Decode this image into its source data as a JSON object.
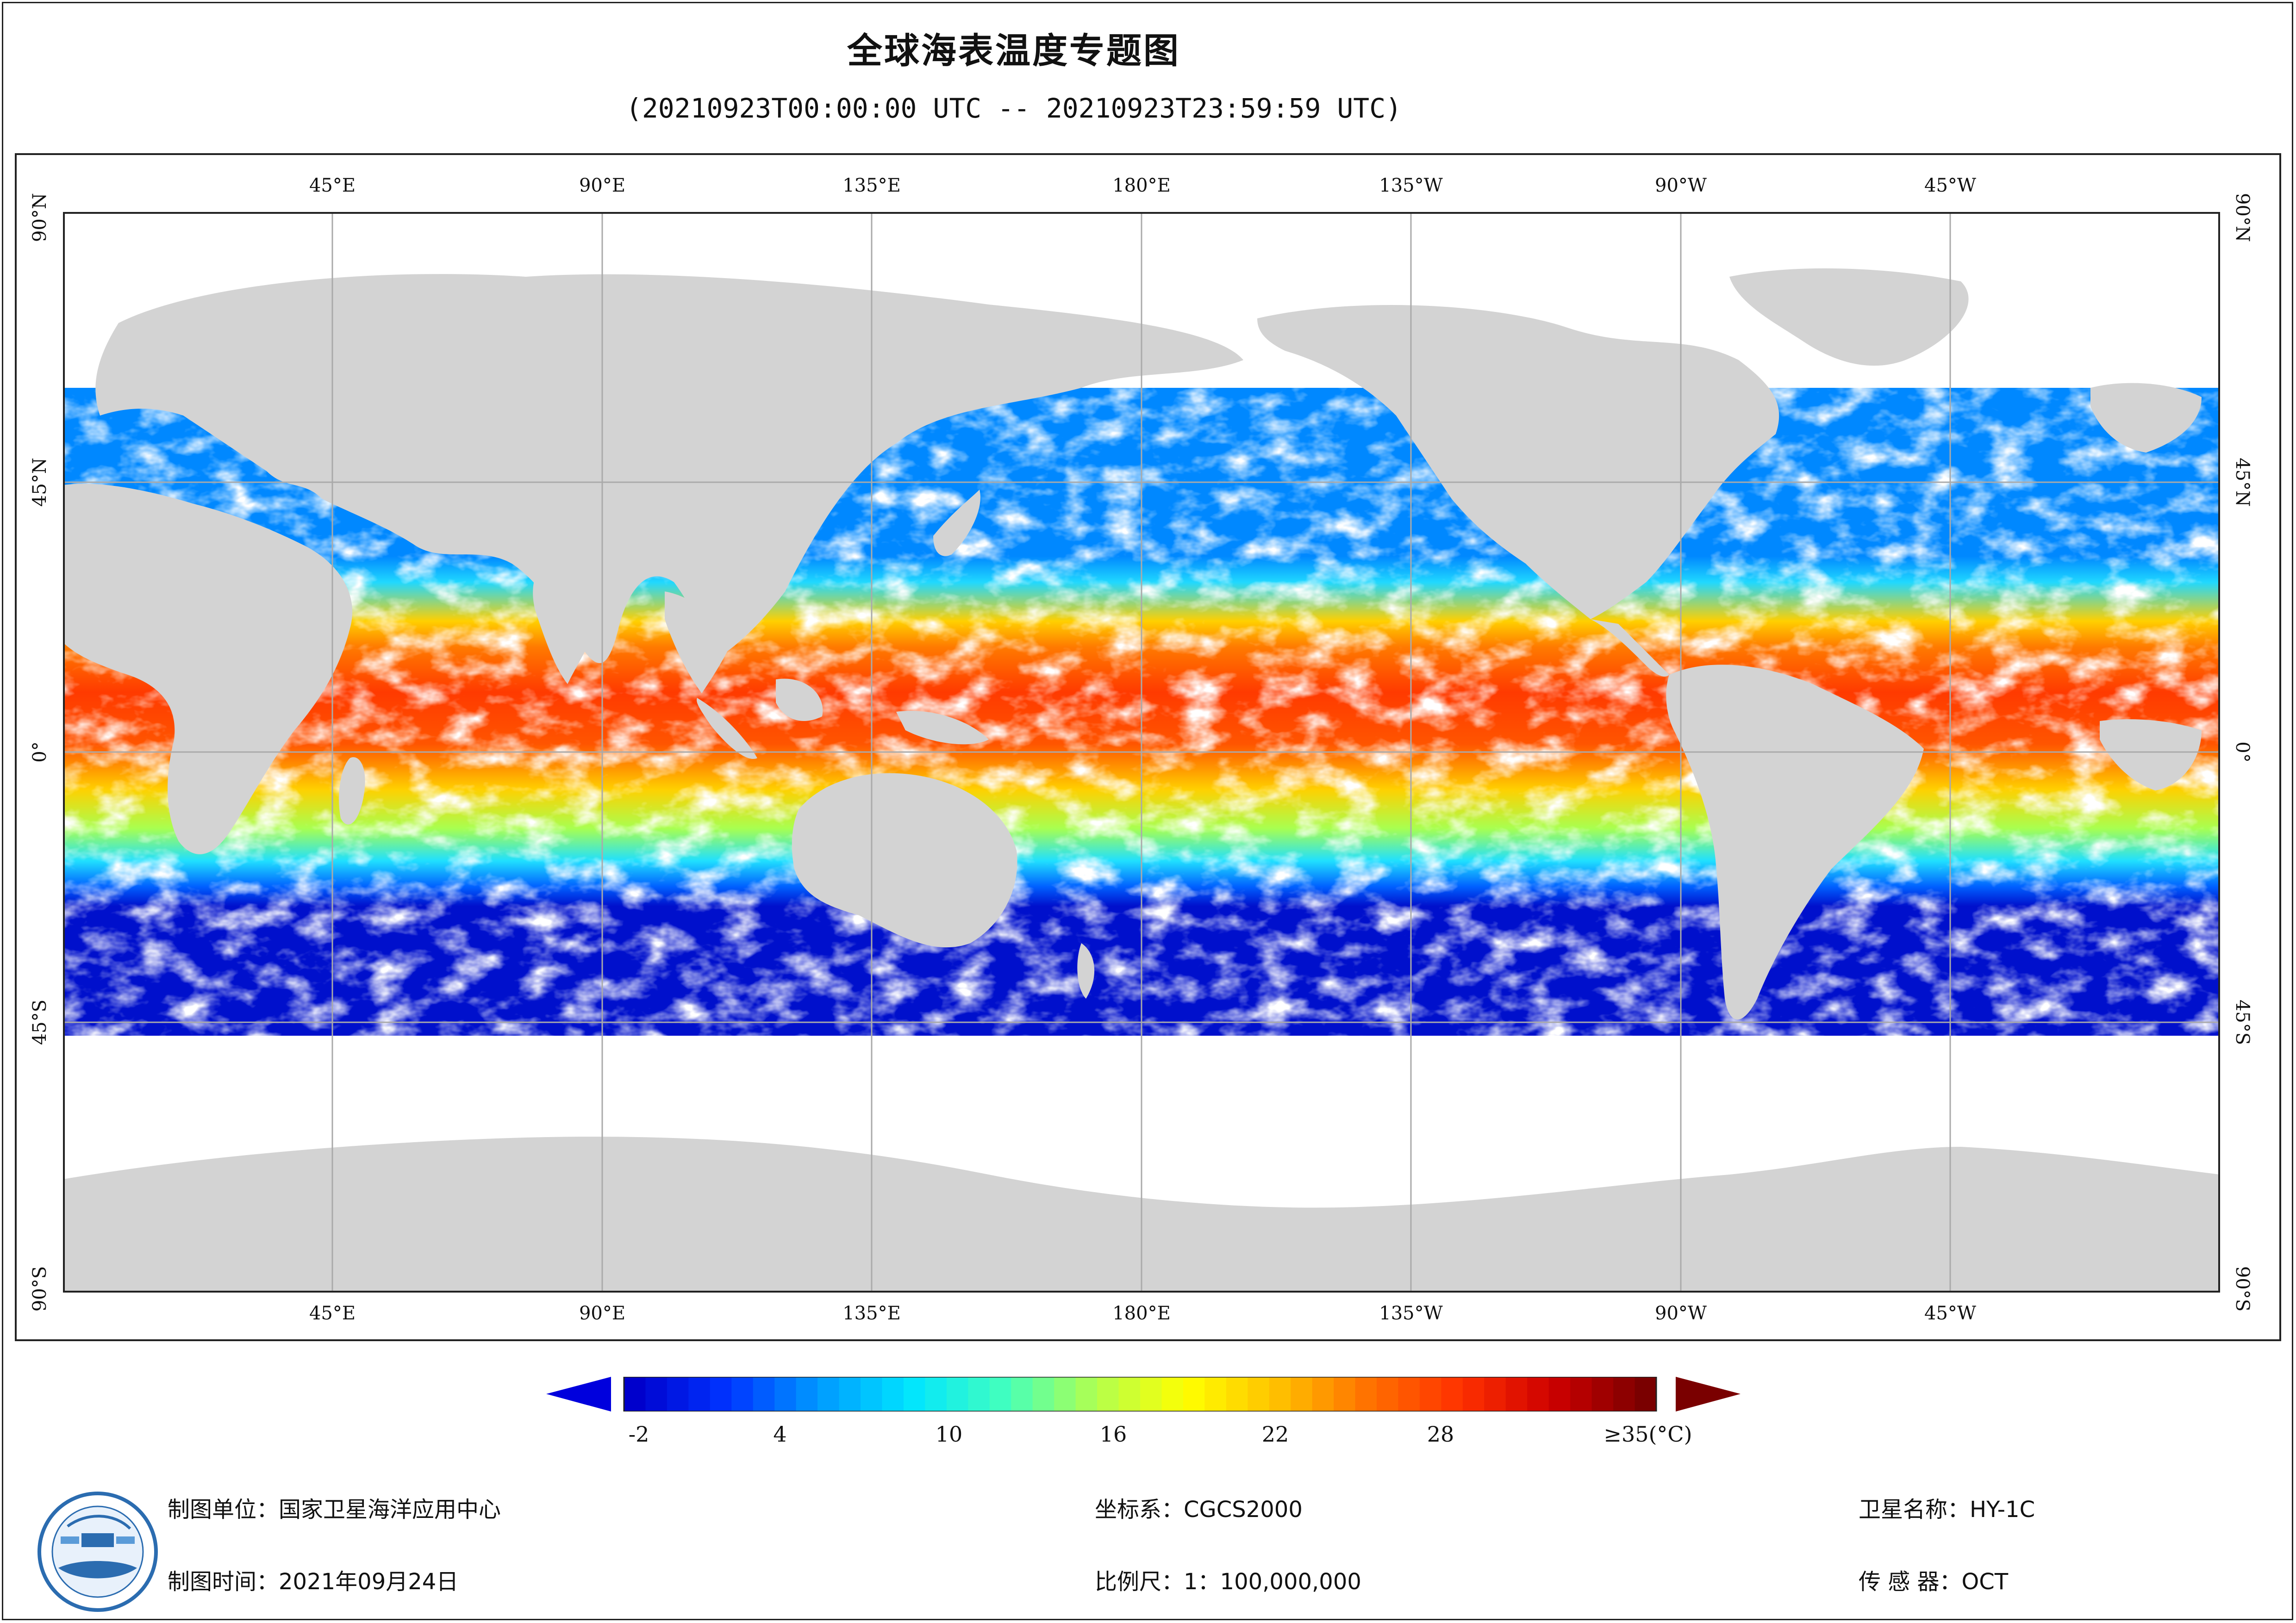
{
  "title": "全球海表温度专题图",
  "subtitle": "(20210923T00:00:00 UTC -- 20210923T23:59:59 UTC)",
  "map": {
    "lon_labels": [
      "45°E",
      "90°E",
      "135°E",
      "180°E",
      "135°W",
      "90°W",
      "45°W"
    ],
    "lat_labels": [
      "90°N",
      "45°N",
      "0°",
      "45°S",
      "90°S"
    ],
    "colors": {
      "land": "#d3d3d3",
      "cloud_no_data": "#ffffff",
      "grid": "#aaaaaa"
    }
  },
  "colorbar": {
    "ticks": [
      "-2",
      "4",
      "10",
      "16",
      "22",
      "28",
      "≥35(°C)"
    ],
    "stops": [
      "#0000cc",
      "#0033ff",
      "#0099ff",
      "#00e5ff",
      "#40ffc0",
      "#b0ff50",
      "#ffff00",
      "#ffc000",
      "#ff7000",
      "#ff3000",
      "#cc0000",
      "#7a0000"
    ],
    "min_arrow_color": "#0000dd",
    "max_arrow_color": "#7a0000"
  },
  "footer": {
    "unit": "制图单位：国家卫星海洋应用中心",
    "time": "制图时间：2021年09月24日",
    "crs": "坐标系：CGCS2000",
    "scale": "比例尺：1：100,000,000",
    "satellite": "卫星名称：HY-1C",
    "sensor": "传 感 器：OCT"
  },
  "logo": {
    "icon": "nsoas-logo-icon"
  }
}
